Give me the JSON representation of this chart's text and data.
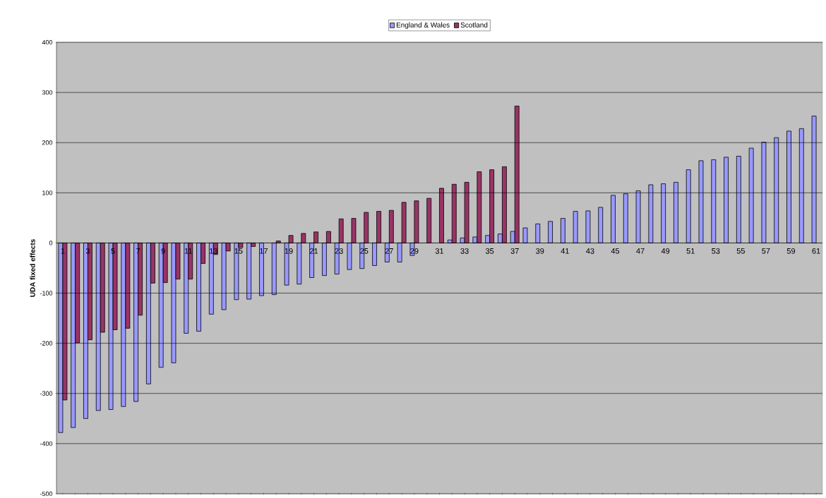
{
  "chart_data": {
    "type": "bar",
    "ylabel": "UDA fixed effects",
    "categories": [
      "1",
      null,
      "3",
      null,
      "5",
      null,
      "7",
      null,
      "9",
      null,
      "11",
      null,
      "13",
      null,
      "15",
      null,
      "17",
      null,
      "19",
      null,
      "21",
      null,
      "23",
      null,
      "25",
      null,
      "27",
      null,
      "29",
      null,
      "31",
      null,
      "33",
      null,
      "35",
      null,
      "37",
      null,
      "39",
      null,
      "41",
      null,
      "43",
      null,
      "45",
      null,
      "47",
      null,
      "49",
      null,
      "51",
      null,
      "53",
      null,
      "55",
      null,
      "57",
      null,
      "59",
      null,
      "61"
    ],
    "series": [
      {
        "name": "England & Wales",
        "color": "#9999ff",
        "values": [
          -378,
          -368,
          -350,
          -334,
          -332,
          -326,
          -316,
          -281,
          -248,
          -239,
          -180,
          -176,
          -142,
          -133,
          -113,
          -112,
          -105,
          -103,
          -84,
          -82,
          -69,
          -65,
          -62,
          -53,
          -51,
          -45,
          -38,
          -38,
          -25,
          null,
          null,
          6,
          10,
          12,
          15,
          18,
          23,
          30,
          38,
          43,
          49,
          63,
          64,
          71,
          95,
          98,
          104,
          116,
          118,
          121,
          146,
          164,
          166,
          171,
          173,
          189,
          201,
          210,
          223,
          228,
          253
        ]
      },
      {
        "name": "Scotland",
        "color": "#993366",
        "values": [
          -313,
          -199,
          -193,
          -178,
          -173,
          -170,
          -144,
          -80,
          -79,
          -72,
          -72,
          -41,
          -23,
          -16,
          -9,
          -7,
          null,
          4,
          15,
          19,
          22,
          23,
          48,
          49,
          61,
          63,
          65,
          81,
          84,
          89,
          109,
          117,
          121,
          142,
          146,
          152,
          273,
          null,
          null,
          null,
          null,
          null,
          null,
          null,
          null,
          null,
          null,
          null,
          null,
          null,
          null,
          null,
          null,
          null,
          null,
          null,
          null,
          null,
          null,
          null,
          null
        ]
      }
    ],
    "ylim": [
      -500,
      400
    ],
    "yticks": [
      -500,
      -400,
      -300,
      -200,
      -100,
      0,
      100,
      200,
      300,
      400
    ],
    "grid": "y",
    "legend": "top"
  }
}
